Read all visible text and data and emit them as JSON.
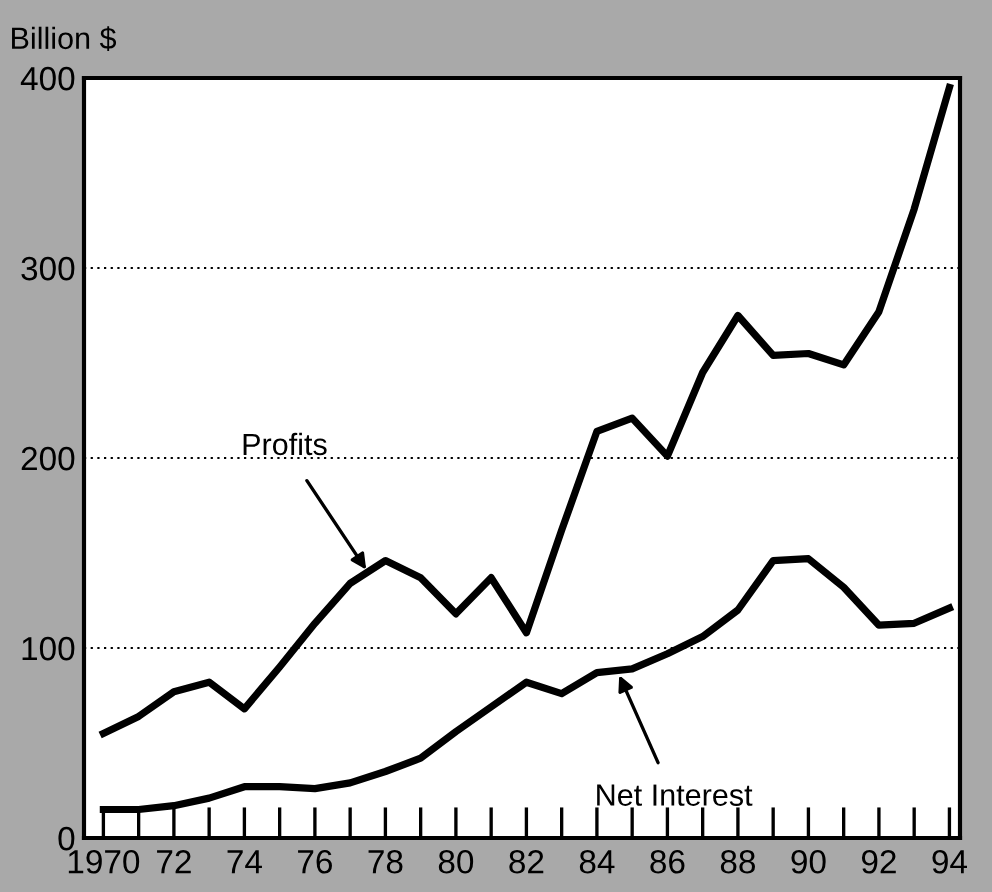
{
  "chart_data": {
    "type": "line",
    "ylabel": "Billion $",
    "x": [
      1970,
      1971,
      1972,
      1973,
      1974,
      1975,
      1976,
      1977,
      1978,
      1979,
      1980,
      1981,
      1982,
      1983,
      1984,
      1985,
      1986,
      1987,
      1988,
      1989,
      1990,
      1991,
      1992,
      1993,
      1994
    ],
    "series": [
      {
        "color": "#000000",
        "values": [
          55,
          64,
          77,
          82,
          68,
          90,
          113,
          134,
          146,
          137,
          118,
          137,
          108,
          162,
          214,
          221,
          201,
          245,
          275,
          254,
          255,
          249,
          277,
          331,
          395
        ]
      },
      {
        "color": "#000000",
        "values": [
          15,
          15,
          17,
          21,
          27,
          27,
          26,
          29,
          35,
          42,
          56,
          69,
          82,
          76,
          87,
          89,
          97,
          106,
          120,
          146,
          147,
          132,
          112,
          113,
          121
        ]
      }
    ],
    "annotations": [
      {
        "text": "Profits",
        "x": 1977.5,
        "y": 140
      },
      {
        "text": "Net Interest",
        "x": 1984.6,
        "y": 87
      }
    ],
    "xlim": [
      1969.45,
      1994.3
    ],
    "ylim": [
      0,
      400
    ],
    "xticks": [
      {
        "value": 1970,
        "label": "1970"
      },
      {
        "value": 1971,
        "label": null
      },
      {
        "value": 1972,
        "label": "72"
      },
      {
        "value": 1973,
        "label": null
      },
      {
        "value": 1974,
        "label": "74"
      },
      {
        "value": 1975,
        "label": null
      },
      {
        "value": 1976,
        "label": "76"
      },
      {
        "value": 1977,
        "label": null
      },
      {
        "value": 1978,
        "label": "78"
      },
      {
        "value": 1979,
        "label": null
      },
      {
        "value": 1980,
        "label": "80"
      },
      {
        "value": 1981,
        "label": null
      },
      {
        "value": 1982,
        "label": "82"
      },
      {
        "value": 1983,
        "label": null
      },
      {
        "value": 1984,
        "label": "84"
      },
      {
        "value": 1985,
        "label": null
      },
      {
        "value": 1986,
        "label": "86"
      },
      {
        "value": 1987,
        "label": null
      },
      {
        "value": 1988,
        "label": "88"
      },
      {
        "value": 1989,
        "label": null
      },
      {
        "value": 1990,
        "label": "90"
      },
      {
        "value": 1991,
        "label": null
      },
      {
        "value": 1992,
        "label": "92"
      },
      {
        "value": 1993,
        "label": null
      },
      {
        "value": 1994,
        "label": "94"
      }
    ],
    "yticks": [
      0,
      100,
      200,
      300,
      400
    ],
    "grid": "y",
    "line_style": "solid",
    "marker": "none"
  }
}
